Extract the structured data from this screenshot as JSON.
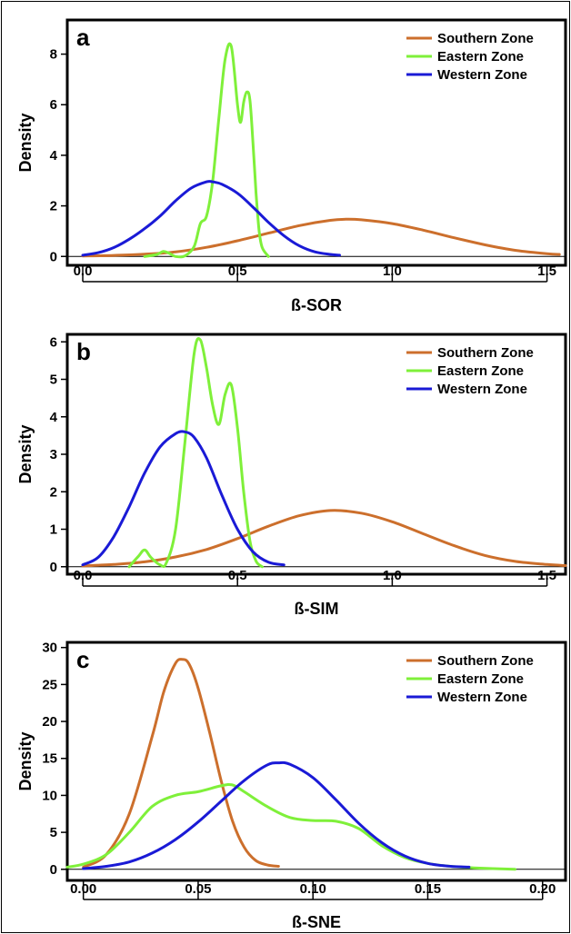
{
  "chart_data": [
    {
      "type": "line",
      "panel_label": "a",
      "xlabel": "ß-SOR",
      "ylabel": "Density",
      "xlim": [
        -0.05,
        1.56
      ],
      "ylim": [
        -0.35,
        9.35
      ],
      "xticks": [
        0.0,
        0.5,
        1.0,
        1.5
      ],
      "xtick_labels": [
        "0.0",
        "0.5",
        "1.0",
        "1.5"
      ],
      "yticks": [
        0,
        2,
        4,
        6,
        8
      ],
      "ytick_labels": [
        "0",
        "2",
        "4",
        "6",
        "8"
      ],
      "grid": false,
      "legend_position": "top-right",
      "series": [
        {
          "name": "Southern Zone",
          "color": "#cc6f2c",
          "x": [
            0.0,
            0.1,
            0.2,
            0.3,
            0.4,
            0.5,
            0.6,
            0.7,
            0.8,
            0.85,
            0.9,
            1.0,
            1.1,
            1.2,
            1.3,
            1.4,
            1.5,
            1.54
          ],
          "y": [
            0.02,
            0.04,
            0.09,
            0.18,
            0.36,
            0.62,
            0.92,
            1.22,
            1.43,
            1.47,
            1.45,
            1.3,
            1.04,
            0.74,
            0.46,
            0.24,
            0.11,
            0.08
          ]
        },
        {
          "name": "Eastern Zone",
          "color": "#7ff03a",
          "x": [
            0.2,
            0.24,
            0.26,
            0.28,
            0.3,
            0.33,
            0.36,
            0.38,
            0.4,
            0.42,
            0.44,
            0.46,
            0.48,
            0.5,
            0.51,
            0.52,
            0.53,
            0.54,
            0.55,
            0.56,
            0.57,
            0.58,
            0.6
          ],
          "y": [
            0.0,
            0.08,
            0.2,
            0.12,
            0.0,
            0.02,
            0.4,
            1.3,
            1.6,
            3.0,
            5.5,
            7.8,
            8.3,
            6.0,
            5.3,
            6.1,
            6.5,
            6.2,
            4.5,
            2.5,
            1.0,
            0.35,
            0.0
          ]
        },
        {
          "name": "Western Zone",
          "color": "#1a1ad6",
          "x": [
            0.0,
            0.05,
            0.1,
            0.15,
            0.2,
            0.25,
            0.3,
            0.35,
            0.4,
            0.42,
            0.45,
            0.5,
            0.55,
            0.6,
            0.65,
            0.7,
            0.75,
            0.8,
            0.83
          ],
          "y": [
            0.05,
            0.15,
            0.35,
            0.68,
            1.1,
            1.6,
            2.2,
            2.7,
            2.95,
            2.95,
            2.85,
            2.5,
            1.95,
            1.35,
            0.82,
            0.42,
            0.18,
            0.08,
            0.05
          ]
        }
      ]
    },
    {
      "type": "line",
      "panel_label": "b",
      "xlabel": "ß-SIM",
      "ylabel": "Density",
      "xlim": [
        -0.05,
        1.56
      ],
      "ylim": [
        -0.2,
        6.2
      ],
      "xticks": [
        0.0,
        0.5,
        1.0,
        1.5
      ],
      "xtick_labels": [
        "0.0",
        "0.5",
        "1.0",
        "1.5"
      ],
      "yticks": [
        0,
        1,
        2,
        3,
        4,
        5,
        6
      ],
      "ytick_labels": [
        "0",
        "1",
        "2",
        "3",
        "4",
        "5",
        "6"
      ],
      "grid": false,
      "legend_position": "top-right",
      "series": [
        {
          "name": "Southern Zone",
          "color": "#cc6f2c",
          "x": [
            0.0,
            0.1,
            0.2,
            0.3,
            0.4,
            0.5,
            0.6,
            0.7,
            0.8,
            0.9,
            1.0,
            1.1,
            1.2,
            1.3,
            1.4,
            1.5,
            1.56
          ],
          "y": [
            0.02,
            0.06,
            0.13,
            0.26,
            0.46,
            0.75,
            1.08,
            1.36,
            1.5,
            1.43,
            1.2,
            0.88,
            0.56,
            0.3,
            0.14,
            0.06,
            0.03
          ]
        },
        {
          "name": "Eastern Zone",
          "color": "#7ff03a",
          "x": [
            0.15,
            0.18,
            0.2,
            0.22,
            0.25,
            0.27,
            0.3,
            0.33,
            0.36,
            0.38,
            0.4,
            0.42,
            0.44,
            0.46,
            0.48,
            0.5,
            0.52,
            0.54,
            0.56,
            0.58
          ],
          "y": [
            0.0,
            0.28,
            0.45,
            0.25,
            0.05,
            0.1,
            1.0,
            3.3,
            5.7,
            6.05,
            5.3,
            4.3,
            3.8,
            4.6,
            4.85,
            3.7,
            2.0,
            0.7,
            0.15,
            0.0
          ]
        },
        {
          "name": "Western Zone",
          "color": "#1a1ad6",
          "x": [
            0.0,
            0.05,
            0.1,
            0.15,
            0.2,
            0.25,
            0.3,
            0.33,
            0.36,
            0.4,
            0.45,
            0.5,
            0.55,
            0.6,
            0.65
          ],
          "y": [
            0.05,
            0.25,
            0.8,
            1.6,
            2.5,
            3.2,
            3.55,
            3.6,
            3.45,
            2.9,
            1.9,
            1.0,
            0.4,
            0.12,
            0.05
          ]
        }
      ]
    },
    {
      "type": "line",
      "panel_label": "c",
      "xlabel": "ß-SNE",
      "ylabel": "Density",
      "xlim": [
        -0.007,
        0.21
      ],
      "ylim": [
        -1.5,
        30.7
      ],
      "xticks": [
        0.0,
        0.05,
        0.1,
        0.15,
        0.2
      ],
      "xtick_labels": [
        "0.00",
        "0.05",
        "0.10",
        "0.15",
        "0.20"
      ],
      "yticks": [
        0,
        5,
        10,
        15,
        20,
        25,
        30
      ],
      "ytick_labels": [
        "0",
        "5",
        "10",
        "15",
        "20",
        "25",
        "30"
      ],
      "grid": false,
      "legend_position": "top-right",
      "series": [
        {
          "name": "Southern Zone",
          "color": "#cc6f2c",
          "x": [
            0.0,
            0.01,
            0.02,
            0.03,
            0.035,
            0.04,
            0.043,
            0.046,
            0.05,
            0.055,
            0.06,
            0.065,
            0.07,
            0.075,
            0.08,
            0.085
          ],
          "y": [
            0.3,
            2.0,
            7.5,
            18.0,
            24.0,
            27.8,
            28.4,
            27.8,
            24.5,
            18.5,
            12.0,
            6.5,
            3.0,
            1.2,
            0.6,
            0.4
          ]
        },
        {
          "name": "Eastern Zone",
          "color": "#7ff03a",
          "x": [
            -0.007,
            0.0,
            0.01,
            0.02,
            0.03,
            0.04,
            0.05,
            0.06,
            0.065,
            0.07,
            0.08,
            0.09,
            0.1,
            0.11,
            0.12,
            0.13,
            0.14,
            0.15,
            0.16,
            0.17,
            0.188
          ],
          "y": [
            0.3,
            0.7,
            2.0,
            5.0,
            8.5,
            10.0,
            10.5,
            11.3,
            11.4,
            10.5,
            8.5,
            7.0,
            6.6,
            6.5,
            5.5,
            3.2,
            1.6,
            0.8,
            0.4,
            0.2,
            0.0
          ]
        },
        {
          "name": "Western Zone",
          "color": "#1a1ad6",
          "x": [
            0.0,
            0.01,
            0.02,
            0.03,
            0.04,
            0.05,
            0.06,
            0.07,
            0.08,
            0.085,
            0.09,
            0.1,
            0.11,
            0.12,
            0.13,
            0.14,
            0.15,
            0.16,
            0.168
          ],
          "y": [
            0.1,
            0.4,
            1.0,
            2.2,
            4.0,
            6.4,
            9.2,
            12.0,
            14.1,
            14.4,
            14.2,
            12.4,
            9.4,
            6.2,
            3.6,
            1.8,
            0.8,
            0.4,
            0.3
          ]
        }
      ]
    }
  ]
}
